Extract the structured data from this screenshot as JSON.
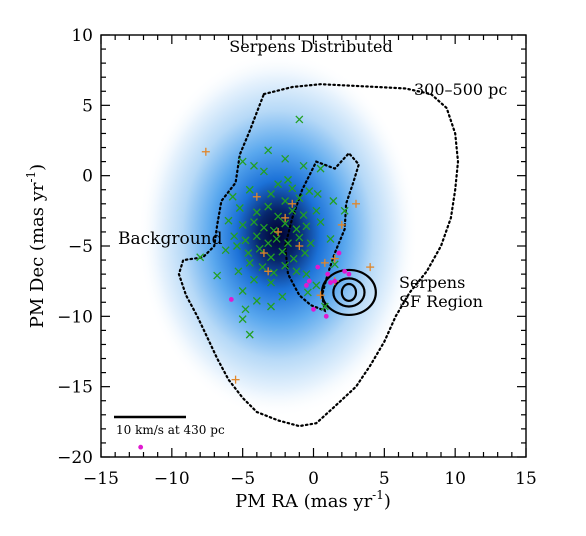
{
  "chart_data": {
    "type": "scatter",
    "title": "Serpens Distributed",
    "xlabel": "PM RA (mas yr",
    "xlabel_sup": "-1",
    "xlabel_close": ")",
    "ylabel": "PM Dec (mas yr",
    "ylabel_sup": "-1",
    "ylabel_close": ")",
    "xlim": [
      -15,
      15
    ],
    "ylim": [
      -20,
      10
    ],
    "x_ticks": [
      "-15",
      "-10",
      "-5",
      "0",
      "5",
      "10",
      "15"
    ],
    "y_ticks": [
      "10",
      "5",
      "0",
      "-5",
      "-10",
      "-15",
      "-20"
    ],
    "grid": false,
    "colors": {
      "green_cross": "#22a022",
      "orange_plus": "#e0862a",
      "magenta_dot": "#e01ad0",
      "background_label": "#2a3fe0",
      "density_core": "#000040",
      "density_mid": "#1a78e0",
      "density_outer": "#d8ecfb"
    },
    "annotations": {
      "range_label": "300–500 pc",
      "background_label": "Background",
      "sf_region_line1": "Serpens",
      "sf_region_line2": "SF Region",
      "scale_label": "10 km/s at 430 pc"
    },
    "background_density": {
      "center": [
        -2.5,
        -4.2
      ],
      "sigma_x": 4.5,
      "sigma_y": 6.5
    },
    "dotted_contour": [
      [
        -3.5,
        5.8
      ],
      [
        -1.5,
        6.3
      ],
      [
        0.5,
        6.5
      ],
      [
        2.5,
        6.4
      ],
      [
        4.5,
        6.3
      ],
      [
        6.5,
        6.2
      ],
      [
        8.3,
        5.8
      ],
      [
        9.4,
        4.8
      ],
      [
        10.0,
        3.0
      ],
      [
        10.2,
        1.0
      ],
      [
        10.0,
        -1.0
      ],
      [
        9.7,
        -3.0
      ],
      [
        9.0,
        -5.0
      ],
      [
        8.0,
        -6.8
      ],
      [
        6.8,
        -8.3
      ],
      [
        5.8,
        -10.0
      ],
      [
        5.0,
        -11.8
      ],
      [
        4.0,
        -13.5
      ],
      [
        3.0,
        -15.0
      ],
      [
        1.5,
        -16.4
      ],
      [
        0.2,
        -17.6
      ],
      [
        -1.0,
        -17.8
      ],
      [
        -2.5,
        -17.4
      ],
      [
        -4.0,
        -16.8
      ],
      [
        -5.0,
        -15.8
      ],
      [
        -6.0,
        -14.5
      ],
      [
        -6.8,
        -13.0
      ],
      [
        -7.5,
        -11.5
      ],
      [
        -8.2,
        -10.0
      ],
      [
        -9.0,
        -8.5
      ],
      [
        -9.5,
        -7.0
      ],
      [
        -9.2,
        -6.0
      ],
      [
        -7.8,
        -5.8
      ],
      [
        -7.0,
        -5.0
      ],
      [
        -6.8,
        -3.5
      ],
      [
        -6.5,
        -1.8
      ],
      [
        -5.5,
        -0.5
      ],
      [
        -5.2,
        1.5
      ],
      [
        -4.5,
        3.2
      ],
      [
        -4.0,
        4.5
      ],
      [
        -3.5,
        5.8
      ]
    ],
    "dotted_inner": [
      [
        0.2,
        1.0
      ],
      [
        1.5,
        0.5
      ],
      [
        2.5,
        1.6
      ],
      [
        3.2,
        0.8
      ],
      [
        2.8,
        -0.5
      ],
      [
        2.3,
        -2.0
      ],
      [
        2.2,
        -3.8
      ],
      [
        1.5,
        -5.5
      ],
      [
        1.0,
        -7.0
      ],
      [
        0.6,
        -8.5
      ],
      [
        0.8,
        -9.6
      ],
      [
        -0.2,
        -9.2
      ],
      [
        -1.0,
        -8.5
      ],
      [
        -1.8,
        -7.0
      ],
      [
        -2.0,
        -5.0
      ],
      [
        -1.5,
        -3.0
      ],
      [
        -0.8,
        -1.0
      ],
      [
        0.2,
        1.0
      ]
    ],
    "sf_contours": [
      {
        "cx": 2.5,
        "cy": -8.3,
        "rx": 1.9,
        "ry": 1.6
      },
      {
        "cx": 2.5,
        "cy": -8.3,
        "rx": 1.1,
        "ry": 1.0
      },
      {
        "cx": 2.5,
        "cy": -8.3,
        "rx": 0.5,
        "ry": 0.6
      }
    ],
    "series": [
      {
        "marker": "x",
        "values": [
          [
            -1.0,
            4.0
          ],
          [
            -3.2,
            1.8
          ],
          [
            -2.0,
            1.2
          ],
          [
            -5.0,
            1.0
          ],
          [
            -4.2,
            0.7
          ],
          [
            -0.7,
            0.7
          ],
          [
            0.5,
            0.5
          ],
          [
            -3.5,
            0.3
          ],
          [
            -1.8,
            -0.3
          ],
          [
            -2.5,
            -0.6
          ],
          [
            -1.5,
            -0.9
          ],
          [
            -0.3,
            -1.1
          ],
          [
            -4.5,
            -1.0
          ],
          [
            -5.7,
            -1.5
          ],
          [
            -3.0,
            -1.3
          ],
          [
            -2.0,
            -1.8
          ],
          [
            -1.0,
            -1.6
          ],
          [
            0.3,
            -1.3
          ],
          [
            1.4,
            -1.8
          ],
          [
            -5.2,
            -2.3
          ],
          [
            -4.0,
            -2.6
          ],
          [
            -3.2,
            -2.2
          ],
          [
            -2.5,
            -2.9
          ],
          [
            -1.5,
            -2.5
          ],
          [
            -0.7,
            -2.8
          ],
          [
            0.2,
            -2.5
          ],
          [
            -6.0,
            -3.2
          ],
          [
            -5.0,
            -3.5
          ],
          [
            -4.2,
            -3.3
          ],
          [
            -3.5,
            -3.7
          ],
          [
            -2.8,
            -3.9
          ],
          [
            -2.0,
            -3.4
          ],
          [
            -1.2,
            -3.8
          ],
          [
            -0.5,
            -3.6
          ],
          [
            0.5,
            -3.3
          ],
          [
            -5.6,
            -4.3
          ],
          [
            -4.8,
            -4.6
          ],
          [
            -4.0,
            -4.3
          ],
          [
            -3.2,
            -4.8
          ],
          [
            -2.6,
            -4.5
          ],
          [
            -1.8,
            -4.8
          ],
          [
            -1.0,
            -4.4
          ],
          [
            -0.2,
            -4.8
          ],
          [
            -6.2,
            -5.3
          ],
          [
            -5.4,
            -5.0
          ],
          [
            -4.6,
            -5.5
          ],
          [
            -3.8,
            -5.2
          ],
          [
            -3.0,
            -5.8
          ],
          [
            -2.2,
            -5.4
          ],
          [
            -1.4,
            -5.9
          ],
          [
            -0.6,
            -5.5
          ],
          [
            -4.5,
            -6.2
          ],
          [
            -3.6,
            -6.5
          ],
          [
            -2.8,
            -6.9
          ],
          [
            -2.0,
            -6.4
          ],
          [
            -1.2,
            -6.8
          ],
          [
            -0.5,
            -7.0
          ],
          [
            -5.3,
            -6.8
          ],
          [
            -4.2,
            -7.4
          ],
          [
            -3.0,
            -7.6
          ],
          [
            -6.8,
            -7.1
          ],
          [
            -8.0,
            -5.8
          ],
          [
            -5.0,
            -8.2
          ],
          [
            -4.0,
            -8.9
          ],
          [
            -3.0,
            -9.3
          ],
          [
            -2.2,
            -8.6
          ],
          [
            -5.0,
            -10.2
          ],
          [
            -4.5,
            -11.3
          ],
          [
            -4.8,
            -9.5
          ],
          [
            0.2,
            -7.8
          ],
          [
            0.8,
            -9.3
          ],
          [
            1.5,
            -6.3
          ],
          [
            1.2,
            -4.5
          ],
          [
            -0.4,
            -8.3
          ],
          [
            2.2,
            -2.5
          ]
        ]
      },
      {
        "marker": "+",
        "values": [
          [
            -7.6,
            1.7
          ],
          [
            -4.0,
            -1.5
          ],
          [
            -1.5,
            -2.0
          ],
          [
            -2.5,
            -4.0
          ],
          [
            -3.5,
            -5.5
          ],
          [
            -3.2,
            -6.8
          ],
          [
            -2.0,
            -3.0
          ],
          [
            3.0,
            -2.0
          ],
          [
            2.0,
            -3.5
          ],
          [
            0.8,
            -6.2
          ],
          [
            1.5,
            -5.9
          ],
          [
            4.0,
            -6.5
          ],
          [
            1.5,
            -7.5
          ],
          [
            0.5,
            -8.5
          ],
          [
            -5.5,
            -14.5
          ],
          [
            -1.0,
            -5.0
          ]
        ]
      },
      {
        "marker": "dot",
        "values": [
          [
            -5.8,
            -8.8
          ],
          [
            -0.5,
            -7.8
          ],
          [
            -0.3,
            -7.5
          ],
          [
            0.3,
            -6.5
          ],
          [
            1.8,
            -5.5
          ],
          [
            1.5,
            -7.5
          ],
          [
            2.2,
            -6.8
          ],
          [
            1.0,
            -7.0
          ],
          [
            1.2,
            -7.6
          ],
          [
            2.5,
            -7.0
          ],
          [
            0.9,
            -10.0
          ],
          [
            -12.2,
            -19.3
          ],
          [
            0.0,
            -9.5
          ]
        ]
      }
    ]
  }
}
